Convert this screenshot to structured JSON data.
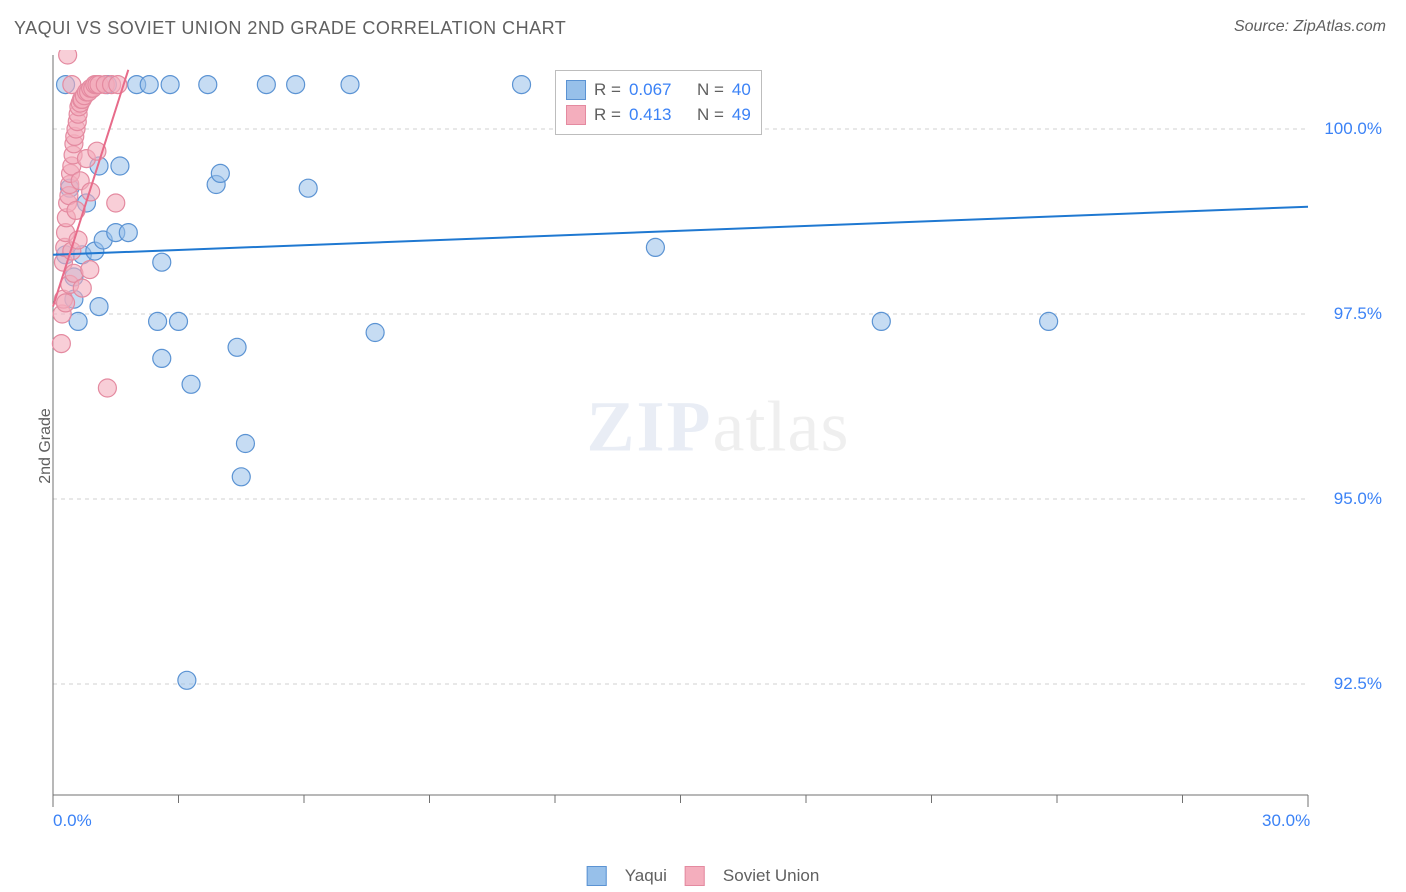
{
  "title": "YAQUI VS SOVIET UNION 2ND GRADE CORRELATION CHART",
  "source": "Source: ZipAtlas.com",
  "ylabel": "2nd Grade",
  "watermark": {
    "a": "ZIP",
    "b": "atlas"
  },
  "chart": {
    "type": "scatter",
    "background_color": "#ffffff",
    "grid_color": "#d0d0d0",
    "grid_dash": "4 4",
    "axis_color": "#707070",
    "xlim": [
      0.0,
      30.0
    ],
    "ylim": [
      91.0,
      101.0
    ],
    "x_ticks_major": [
      0.0,
      30.0
    ],
    "x_ticks_minor": [
      3.0,
      6.0,
      9.0,
      12.0,
      15.0,
      18.0,
      21.0,
      24.0,
      27.0
    ],
    "x_tick_labels": [
      "0.0%",
      "30.0%"
    ],
    "y_ticks": [
      92.5,
      95.0,
      97.5,
      100.0
    ],
    "y_tick_labels": [
      "92.5%",
      "95.0%",
      "97.5%",
      "100.0%"
    ],
    "label_color": "#3b82f6",
    "label_fontsize": 17,
    "marker_radius": 9,
    "marker_stroke_width": 1.2,
    "line_width": 2,
    "series": [
      {
        "name": "Yaqui",
        "fill": "#97c0ea",
        "fill_opacity": 0.55,
        "stroke": "#5b93d3",
        "line_color": "#1f78d1",
        "trend": {
          "x1": 0.0,
          "y1": 98.3,
          "x2": 30.0,
          "y2": 98.95
        },
        "points": [
          [
            0.3,
            98.3
          ],
          [
            0.3,
            100.6
          ],
          [
            0.4,
            99.2
          ],
          [
            0.5,
            97.7
          ],
          [
            0.5,
            98.0
          ],
          [
            0.6,
            97.4
          ],
          [
            0.7,
            98.3
          ],
          [
            0.8,
            99.0
          ],
          [
            1.0,
            98.35
          ],
          [
            1.1,
            97.6
          ],
          [
            1.1,
            99.5
          ],
          [
            1.2,
            98.5
          ],
          [
            1.3,
            100.6
          ],
          [
            1.5,
            98.6
          ],
          [
            1.6,
            99.5
          ],
          [
            1.8,
            98.6
          ],
          [
            2.0,
            100.6
          ],
          [
            2.3,
            100.6
          ],
          [
            2.5,
            97.4
          ],
          [
            2.6,
            96.9
          ],
          [
            2.6,
            98.2
          ],
          [
            2.8,
            100.6
          ],
          [
            3.0,
            97.4
          ],
          [
            3.2,
            92.55
          ],
          [
            3.3,
            96.55
          ],
          [
            3.7,
            100.6
          ],
          [
            3.9,
            99.25
          ],
          [
            4.0,
            99.4
          ],
          [
            4.4,
            97.05
          ],
          [
            4.5,
            95.3
          ],
          [
            4.6,
            95.75
          ],
          [
            5.1,
            100.6
          ],
          [
            5.8,
            100.6
          ],
          [
            6.1,
            99.2
          ],
          [
            7.1,
            100.6
          ],
          [
            7.7,
            97.25
          ],
          [
            11.2,
            100.6
          ],
          [
            14.4,
            98.4
          ],
          [
            19.8,
            97.4
          ],
          [
            23.8,
            97.4
          ]
        ]
      },
      {
        "name": "Soviet Union",
        "fill": "#f4aebd",
        "fill_opacity": 0.6,
        "stroke": "#e48aa0",
        "line_color": "#e76b8a",
        "trend": {
          "x1": 0.0,
          "y1": 97.6,
          "x2": 1.8,
          "y2": 100.8
        },
        "points": [
          [
            0.2,
            97.1
          ],
          [
            0.22,
            97.5
          ],
          [
            0.25,
            97.7
          ],
          [
            0.25,
            98.2
          ],
          [
            0.28,
            98.4
          ],
          [
            0.3,
            97.65
          ],
          [
            0.3,
            98.6
          ],
          [
            0.32,
            98.8
          ],
          [
            0.35,
            101.0
          ],
          [
            0.35,
            99.0
          ],
          [
            0.38,
            99.1
          ],
          [
            0.4,
            97.9
          ],
          [
            0.4,
            99.25
          ],
          [
            0.42,
            99.4
          ],
          [
            0.45,
            98.35
          ],
          [
            0.45,
            99.5
          ],
          [
            0.45,
            100.6
          ],
          [
            0.48,
            99.65
          ],
          [
            0.5,
            98.05
          ],
          [
            0.5,
            99.8
          ],
          [
            0.52,
            99.9
          ],
          [
            0.55,
            100.0
          ],
          [
            0.55,
            98.9
          ],
          [
            0.58,
            100.1
          ],
          [
            0.6,
            100.2
          ],
          [
            0.6,
            98.5
          ],
          [
            0.62,
            100.3
          ],
          [
            0.65,
            100.35
          ],
          [
            0.65,
            99.3
          ],
          [
            0.68,
            100.4
          ],
          [
            0.7,
            100.4
          ],
          [
            0.7,
            97.85
          ],
          [
            0.75,
            100.45
          ],
          [
            0.8,
            100.5
          ],
          [
            0.8,
            99.6
          ],
          [
            0.85,
            100.5
          ],
          [
            0.88,
            98.1
          ],
          [
            0.9,
            100.55
          ],
          [
            0.9,
            99.15
          ],
          [
            0.95,
            100.55
          ],
          [
            1.0,
            100.6
          ],
          [
            1.05,
            100.6
          ],
          [
            1.05,
            99.7
          ],
          [
            1.1,
            100.6
          ],
          [
            1.25,
            100.6
          ],
          [
            1.3,
            96.5
          ],
          [
            1.4,
            100.6
          ],
          [
            1.5,
            99.0
          ],
          [
            1.55,
            100.6
          ]
        ]
      }
    ],
    "stats_box": {
      "rows": [
        {
          "swatch_fill": "#97c0ea",
          "swatch_stroke": "#5b93d3",
          "r_label": "R =",
          "r": "0.067",
          "n_label": "N =",
          "n": "40"
        },
        {
          "swatch_fill": "#f4aebd",
          "swatch_stroke": "#e48aa0",
          "r_label": "R =",
          "r": "0.413",
          "n_label": "N =",
          "n": "49"
        }
      ]
    }
  }
}
